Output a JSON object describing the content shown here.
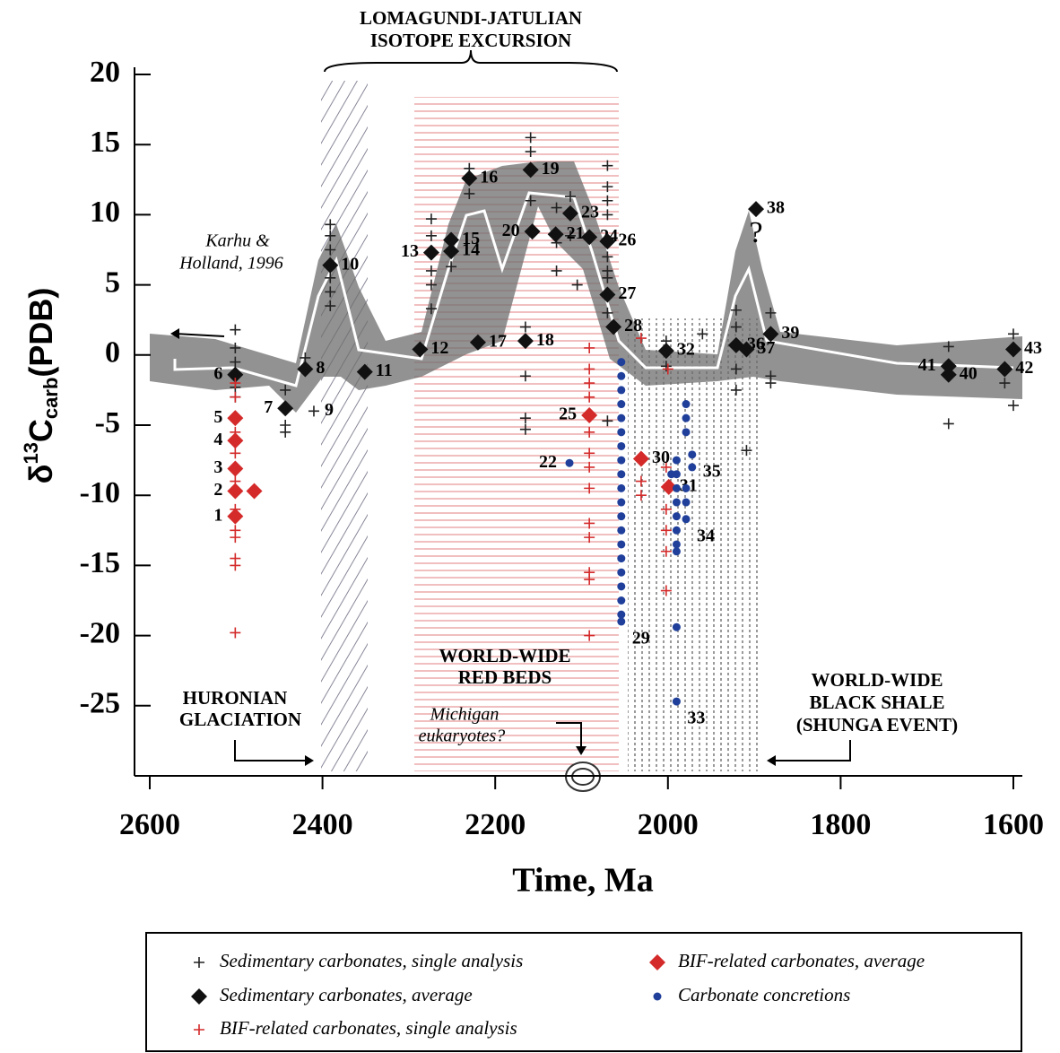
{
  "chart_data": {
    "type": "scatter",
    "xlabel": "Time, Ma",
    "ylabel": [
      "δ",
      "13",
      "C",
      "carb",
      "(PDB)"
    ],
    "xlim": [
      2600,
      1600
    ],
    "xticks": [
      2600,
      2400,
      2200,
      2000,
      1800,
      1600
    ],
    "ylim": [
      -30,
      20
    ],
    "yticks": [
      20,
      15,
      10,
      5,
      0,
      -5,
      -10,
      -15,
      -20,
      -25
    ],
    "annotations": [
      "LOMAGUNDI-JATULIAN",
      "ISOTOPE EXCURSION",
      "Karhu &",
      "Holland, 1996",
      "WORLD-WIDE",
      "RED BEDS",
      "HURONIAN",
      "GLACIATION",
      "Michigan",
      "eukaryotes?",
      "WORLD-WIDE",
      "BLACK SHALE",
      "(SHUNGA EVENT)",
      "?"
    ],
    "series": [
      {
        "name": "Sedimentary carbonates, single analysis",
        "marker": "plus",
        "color": "#222222",
        "x": [
          2501,
          2501,
          2501,
          2501,
          2501,
          2443,
          2443,
          2443,
          2410,
          2391,
          2391,
          2391,
          2391,
          2391,
          2391,
          2274,
          2274,
          2274,
          2274,
          2274,
          2251,
          2230,
          2230,
          2165,
          2165,
          2165,
          2165,
          2159,
          2159,
          2159,
          2129,
          2129,
          2129,
          2113,
          2113,
          2105,
          2070,
          2070,
          2070,
          2070,
          2070,
          2070,
          2070,
          2070,
          2070,
          2002,
          2002,
          1960,
          1921,
          1921,
          1921,
          1921,
          1909,
          1881,
          1881,
          1881,
          1675,
          1675,
          1610,
          1600,
          1600,
          2420
        ],
        "y": [
          1.8,
          0.5,
          -0.5,
          -2.3,
          -3,
          -2.5,
          -5,
          -5.5,
          -4,
          9.3,
          8.5,
          7.5,
          5.5,
          4.5,
          3.5,
          9.7,
          8.5,
          6,
          5,
          3.3,
          6.3,
          13.3,
          11.5,
          2,
          -1.5,
          -4.5,
          -5.3,
          15.5,
          14.5,
          11,
          10.5,
          8,
          6,
          11.3,
          8.5,
          5,
          13.5,
          12,
          11,
          10,
          7,
          6,
          5.5,
          3,
          -4.7,
          1,
          -0.8,
          1.5,
          3.2,
          2,
          -1,
          -2.5,
          -6.8,
          3,
          -1.5,
          -2,
          0.6,
          -4.9,
          -2,
          1.5,
          -3.6,
          -0.2
        ],
        "point_labels": [
          null,
          null,
          null,
          null,
          null,
          null,
          null,
          null,
          9,
          null,
          null,
          null,
          null,
          null,
          null,
          null,
          null,
          null,
          null,
          null,
          null,
          null,
          null,
          null,
          null,
          null,
          null,
          null,
          null,
          null,
          null,
          null,
          null,
          null,
          null,
          null,
          null,
          null,
          null,
          null,
          null,
          null,
          null,
          null,
          null,
          null,
          null,
          null,
          null,
          null,
          null,
          null,
          null,
          null,
          null,
          null,
          null,
          null,
          null,
          null,
          null,
          null
        ]
      },
      {
        "name": "Sedimentary carbonates, average",
        "marker": "diamond",
        "color": "#111111",
        "x": [
          2501,
          2443,
          2420,
          2391,
          2351,
          2287,
          2274,
          2251,
          2251,
          2230,
          2220,
          2165,
          2159,
          2157,
          2130,
          2113,
          2091,
          2070,
          2070,
          2063,
          2002,
          1921,
          1909,
          1898,
          1881,
          1675,
          1675,
          1610,
          1600
        ],
        "y": [
          -1.4,
          -3.8,
          -1.0,
          6.4,
          -1.2,
          0.4,
          7.3,
          7.4,
          8.2,
          12.6,
          0.9,
          1.0,
          13.2,
          8.8,
          8.6,
          10.1,
          8.4,
          8.1,
          4.3,
          2.0,
          0.3,
          0.7,
          0.4,
          10.4,
          1.5,
          -1.4,
          -0.8,
          -1.0,
          0.4
        ],
        "point_labels": [
          6,
          7,
          8,
          10,
          11,
          12,
          13,
          14,
          15,
          16,
          17,
          18,
          19,
          20,
          21,
          23,
          24,
          26,
          27,
          28,
          32,
          36,
          37,
          38,
          39,
          40,
          41,
          42,
          43
        ]
      },
      {
        "name": "BIF-related carbonates, single analysis",
        "marker": "plus",
        "color": "#d42a2a",
        "x": [
          2501,
          2501,
          2501,
          2501,
          2501,
          2501,
          2501,
          2501,
          2501,
          2501,
          2501,
          2091,
          2091,
          2091,
          2091,
          2091,
          2091,
          2091,
          2091,
          2091,
          2091,
          2091,
          2091,
          2091,
          2031,
          2031,
          2031,
          2002,
          2002,
          2002,
          2002,
          2002,
          2000
        ],
        "y": [
          -2,
          -3,
          -5.5,
          -7,
          -9,
          -11,
          -12.5,
          -13,
          -14.5,
          -15,
          -19.8,
          0.5,
          -1,
          -2,
          -3,
          -5.5,
          -7,
          -8,
          -9.5,
          -12,
          -13,
          -15.5,
          -16,
          -20,
          1.2,
          -9,
          -10,
          -8,
          -11,
          -12.5,
          -14,
          -16.8,
          -1
        ],
        "point_labels": [
          null,
          null,
          null,
          null,
          null,
          null,
          null,
          null,
          null,
          null,
          null,
          null,
          null,
          null,
          null,
          null,
          null,
          null,
          null,
          null,
          null,
          null,
          null,
          null,
          null,
          null,
          null,
          null,
          null,
          null,
          null,
          null,
          null
        ]
      },
      {
        "name": "BIF-related carbonates, average",
        "marker": "diamond",
        "color": "#d42a2a",
        "x": [
          2501,
          2501,
          2479,
          2501,
          2501,
          2501,
          2091,
          2031,
          1999
        ],
        "y": [
          -11.5,
          -9.7,
          -9.7,
          -8.1,
          -6.1,
          -4.5,
          -4.3,
          -7.4,
          -9.4
        ],
        "point_labels": [
          1,
          2,
          null,
          3,
          4,
          5,
          25,
          30,
          31
        ]
      },
      {
        "name": "Carbonate concretions",
        "marker": "circle",
        "color": "#1f3f9a",
        "x": [
          2114,
          2054,
          2054,
          2054,
          2054,
          2054,
          2054,
          2054,
          2054,
          2054,
          2054,
          2054,
          2054,
          2054,
          2054,
          2054,
          2054,
          2054,
          2054,
          2054,
          2054,
          1990,
          1990,
          1990,
          1990,
          1990,
          1990,
          1990,
          1990,
          1990,
          1990,
          1979,
          1979,
          1979,
          1979,
          1979,
          1979,
          1972,
          1972,
          1996
        ],
        "y": [
          -7.7,
          -0.5,
          -1.5,
          -2.5,
          -3.5,
          -4.5,
          -5.5,
          -6.5,
          -7.5,
          -8.5,
          -9.5,
          -10.5,
          -11.5,
          -12.5,
          -13.5,
          -14.5,
          -15.5,
          -16.5,
          -17.5,
          -18.5,
          -19,
          -7.5,
          -8.5,
          -9.5,
          -10.5,
          -11.5,
          -12.5,
          -13.5,
          -14,
          -19.4,
          -24.7,
          -3.5,
          -4.5,
          -5.5,
          -9.5,
          -10.5,
          -11.7,
          -7.1,
          -8,
          -8.5
        ],
        "point_labels": [
          22,
          null,
          null,
          null,
          null,
          null,
          null,
          null,
          null,
          null,
          null,
          null,
          null,
          null,
          null,
          null,
          null,
          null,
          null,
          null,
          29,
          null,
          null,
          null,
          null,
          null,
          null,
          null,
          null,
          null,
          33,
          null,
          null,
          null,
          null,
          null,
          34,
          35,
          null,
          null
        ]
      }
    ]
  }
}
